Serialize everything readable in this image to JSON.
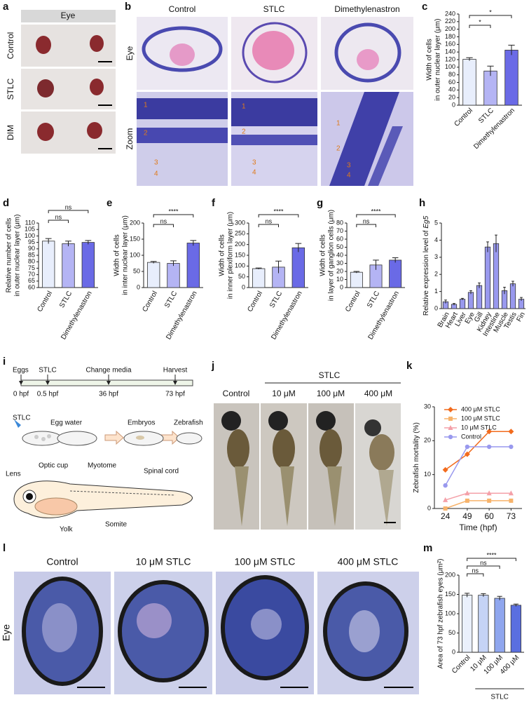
{
  "figure": {
    "a": {
      "panel": "a",
      "title": "Eye",
      "rows": [
        "Control",
        "STLC",
        "DIM"
      ]
    },
    "b": {
      "panel": "b",
      "columns": [
        "Control",
        "STLC",
        "Dimethylenastron"
      ],
      "rows": [
        "Eye",
        "Zoom"
      ],
      "layer_numbers": [
        "1",
        "2",
        "3",
        "4"
      ]
    },
    "i": {
      "panel": "i",
      "timeline": [
        {
          "event": "Eggs",
          "time": "0 hpf"
        },
        {
          "event": "STLC",
          "time": "0.5 hpf"
        },
        {
          "event": "Change media",
          "time": "36 hpf"
        },
        {
          "event": "Harvest",
          "time": "73 hpf"
        }
      ],
      "steps": [
        "STLC",
        "Egg water",
        "Embryos",
        "Zebrafish"
      ],
      "anatomy": [
        "Lens",
        "Optic cup",
        "Myotome",
        "Spinal cord",
        "Somite",
        "Yolk"
      ]
    },
    "j": {
      "panel": "j",
      "group": "STLC",
      "columns": [
        "Control",
        "10 μM",
        "100 μM",
        "400 μM"
      ]
    },
    "l": {
      "panel": "l",
      "row": "Eye",
      "columns": [
        "Control",
        "10 μM STLC",
        "100 μM STLC",
        "400 μM STLC"
      ]
    }
  },
  "chart_data": [
    {
      "panel": "c",
      "type": "bar",
      "ylabel": [
        "Width of cells",
        "in outer nuclear layer (μm)"
      ],
      "categories": [
        "Control",
        "STLC",
        "Dimethylenastron"
      ],
      "values": [
        121,
        90,
        145
      ],
      "errors": [
        4,
        13,
        13
      ],
      "colors": [
        "#e8eefc",
        "#b4b4f4",
        "#6a6ae6"
      ],
      "ylim": [
        0,
        240
      ],
      "yticks": [
        0,
        20,
        40,
        60,
        80,
        100,
        120,
        140,
        160,
        180,
        200,
        220,
        240
      ],
      "significance": [
        "*",
        "*"
      ]
    },
    {
      "panel": "d",
      "type": "bar",
      "ylabel": [
        "Relative number of cells",
        "in outer nuclear layer (μm)"
      ],
      "categories": [
        "Control",
        "STLC",
        "Dimethylenastron"
      ],
      "values": [
        96,
        94,
        95
      ],
      "errors": [
        2,
        2,
        1.5
      ],
      "colors": [
        "#e8eefc",
        "#b4b4f4",
        "#6a6ae6"
      ],
      "ylim": [
        60,
        110
      ],
      "yticks": [
        60,
        65,
        70,
        75,
        80,
        85,
        90,
        95,
        100,
        105,
        110
      ],
      "significance": [
        "ns",
        "ns"
      ]
    },
    {
      "panel": "e",
      "type": "bar",
      "ylabel": [
        "Width of cells",
        "in inter nuclear layer (μm)"
      ],
      "categories": [
        "Control",
        "STLC",
        "Dimethylenastron"
      ],
      "values": [
        78,
        75,
        138
      ],
      "errors": [
        3,
        8,
        8
      ],
      "colors": [
        "#e8eefc",
        "#b4b4f4",
        "#6a6ae6"
      ],
      "ylim": [
        0,
        200
      ],
      "yticks": [
        0,
        50,
        100,
        150,
        200
      ],
      "significance": [
        "ns",
        "****"
      ]
    },
    {
      "panel": "f",
      "type": "bar",
      "ylabel": [
        "Width of cells",
        "in inner plexiform layer (μm)"
      ],
      "categories": [
        "Control",
        "STLC",
        "Dimethylenastron"
      ],
      "values": [
        88,
        95,
        185
      ],
      "errors": [
        3,
        28,
        20
      ],
      "colors": [
        "#e8eefc",
        "#b4b4f4",
        "#6a6ae6"
      ],
      "ylim": [
        0,
        300
      ],
      "yticks": [
        0,
        50,
        100,
        150,
        200,
        250,
        300
      ],
      "significance": [
        "ns",
        "****"
      ]
    },
    {
      "panel": "g",
      "type": "bar",
      "ylabel": [
        "Width of cells",
        "in layer of ganglion cells (μm)"
      ],
      "categories": [
        "Control",
        "STLC",
        "Dimethylenastron"
      ],
      "values": [
        19,
        28,
        34
      ],
      "errors": [
        1,
        6,
        3
      ],
      "colors": [
        "#e8eefc",
        "#b4b4f4",
        "#6a6ae6"
      ],
      "ylim": [
        0,
        80
      ],
      "yticks": [
        0,
        10,
        20,
        30,
        40,
        50,
        60,
        70,
        80
      ],
      "significance": [
        "ns",
        "****"
      ]
    },
    {
      "panel": "h",
      "type": "bar",
      "ylabel": "Relative expression level of ",
      "ylabel_italic": "Eg5",
      "categories": [
        "Brain",
        "Heart",
        "Liver",
        "Eye",
        "Gill",
        "Kidney",
        "Intestine",
        "Muscle",
        "Testis",
        "Fin"
      ],
      "values": [
        0.4,
        0.25,
        0.55,
        0.95,
        1.35,
        3.6,
        3.8,
        1.05,
        1.45,
        0.55
      ],
      "errors": [
        0.1,
        0.05,
        0.05,
        0.1,
        0.15,
        0.3,
        0.5,
        0.2,
        0.15,
        0.1
      ],
      "color": "#9999ee",
      "ylim": [
        0,
        5
      ],
      "yticks": [
        0,
        1,
        2,
        3,
        4,
        5
      ]
    },
    {
      "panel": "k",
      "type": "line",
      "ylabel": "Zebrafish mortality (%)",
      "xlabel": "Time (hpf)",
      "categories": [
        "24",
        "49",
        "60",
        "73"
      ],
      "ylim": [
        0,
        30
      ],
      "yticks": [
        0,
        10,
        20,
        30
      ],
      "series": [
        {
          "name": "400 μM STLC",
          "color": "#f26b1d",
          "marker": "diamond",
          "values": [
            11.4,
            16,
            22.7,
            22.7
          ]
        },
        {
          "name": "100 μM STLC",
          "color": "#f7b36b",
          "marker": "square",
          "values": [
            0,
            2.3,
            2.3,
            2.3
          ]
        },
        {
          "name": "10 μM STLC",
          "color": "#f4a0a8",
          "marker": "triangle",
          "values": [
            2.5,
            4.5,
            4.5,
            4.5
          ]
        },
        {
          "name": "Control",
          "color": "#9999ee",
          "marker": "circle",
          "values": [
            6.8,
            18.2,
            18.2,
            18.2
          ]
        }
      ]
    },
    {
      "panel": "m",
      "type": "bar",
      "ylabel": [
        "Area of 73 hpf zebrafish eyes (μm²)"
      ],
      "categories": [
        "Control",
        "10 μM",
        "100 μM",
        "400 μM"
      ],
      "group_label": "STLC",
      "values": [
        148,
        148,
        140,
        122
      ],
      "errors": [
        5,
        4,
        5,
        3
      ],
      "colors": [
        "#eaf0fc",
        "#c5d3f5",
        "#8fa6ee",
        "#5a6fe0"
      ],
      "ylim": [
        0,
        200
      ],
      "yticks": [
        0,
        50,
        100,
        150,
        200
      ],
      "significance": [
        "ns",
        "ns",
        "****"
      ]
    }
  ]
}
